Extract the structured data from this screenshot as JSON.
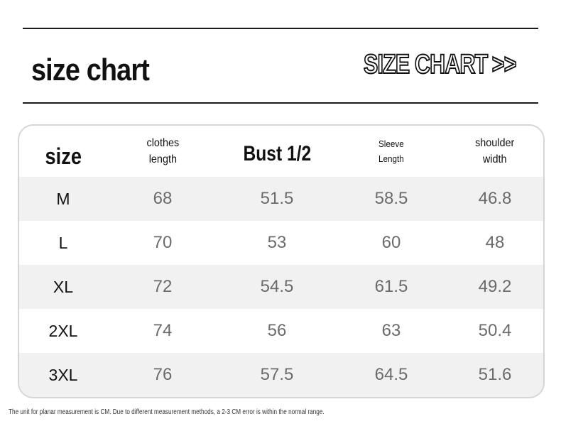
{
  "title": "size chart",
  "badge": {
    "text": "SIZE CHART",
    "arrows": ">>"
  },
  "table": {
    "headers": {
      "size": "size",
      "clothes_length": [
        "clothes",
        "length"
      ],
      "bust": "Bust 1/2",
      "sleeve_length": [
        "Sleeve",
        "Length"
      ],
      "shoulder_width": [
        "shoulder",
        "width"
      ]
    },
    "rows": [
      [
        "M",
        "68",
        "51.5",
        "58.5",
        "46.8"
      ],
      [
        "L",
        "70",
        "53",
        "60",
        "48"
      ],
      [
        "XL",
        "72",
        "54.5",
        "61.5",
        "49.2"
      ],
      [
        "2XL",
        "74",
        "56",
        "63",
        "50.4"
      ],
      [
        "3XL",
        "76",
        "57.5",
        "64.5",
        "51.6"
      ]
    ]
  },
  "footnote": "The unit for planar measurement is CM. Due to different measurement methods, a 2-3 CM error is within the normal range.",
  "colors": {
    "rule": "#1a1a1a",
    "shade_row": "#f1f1f1",
    "border": "#d6d6d6",
    "value_text": "#6b6b6b"
  }
}
